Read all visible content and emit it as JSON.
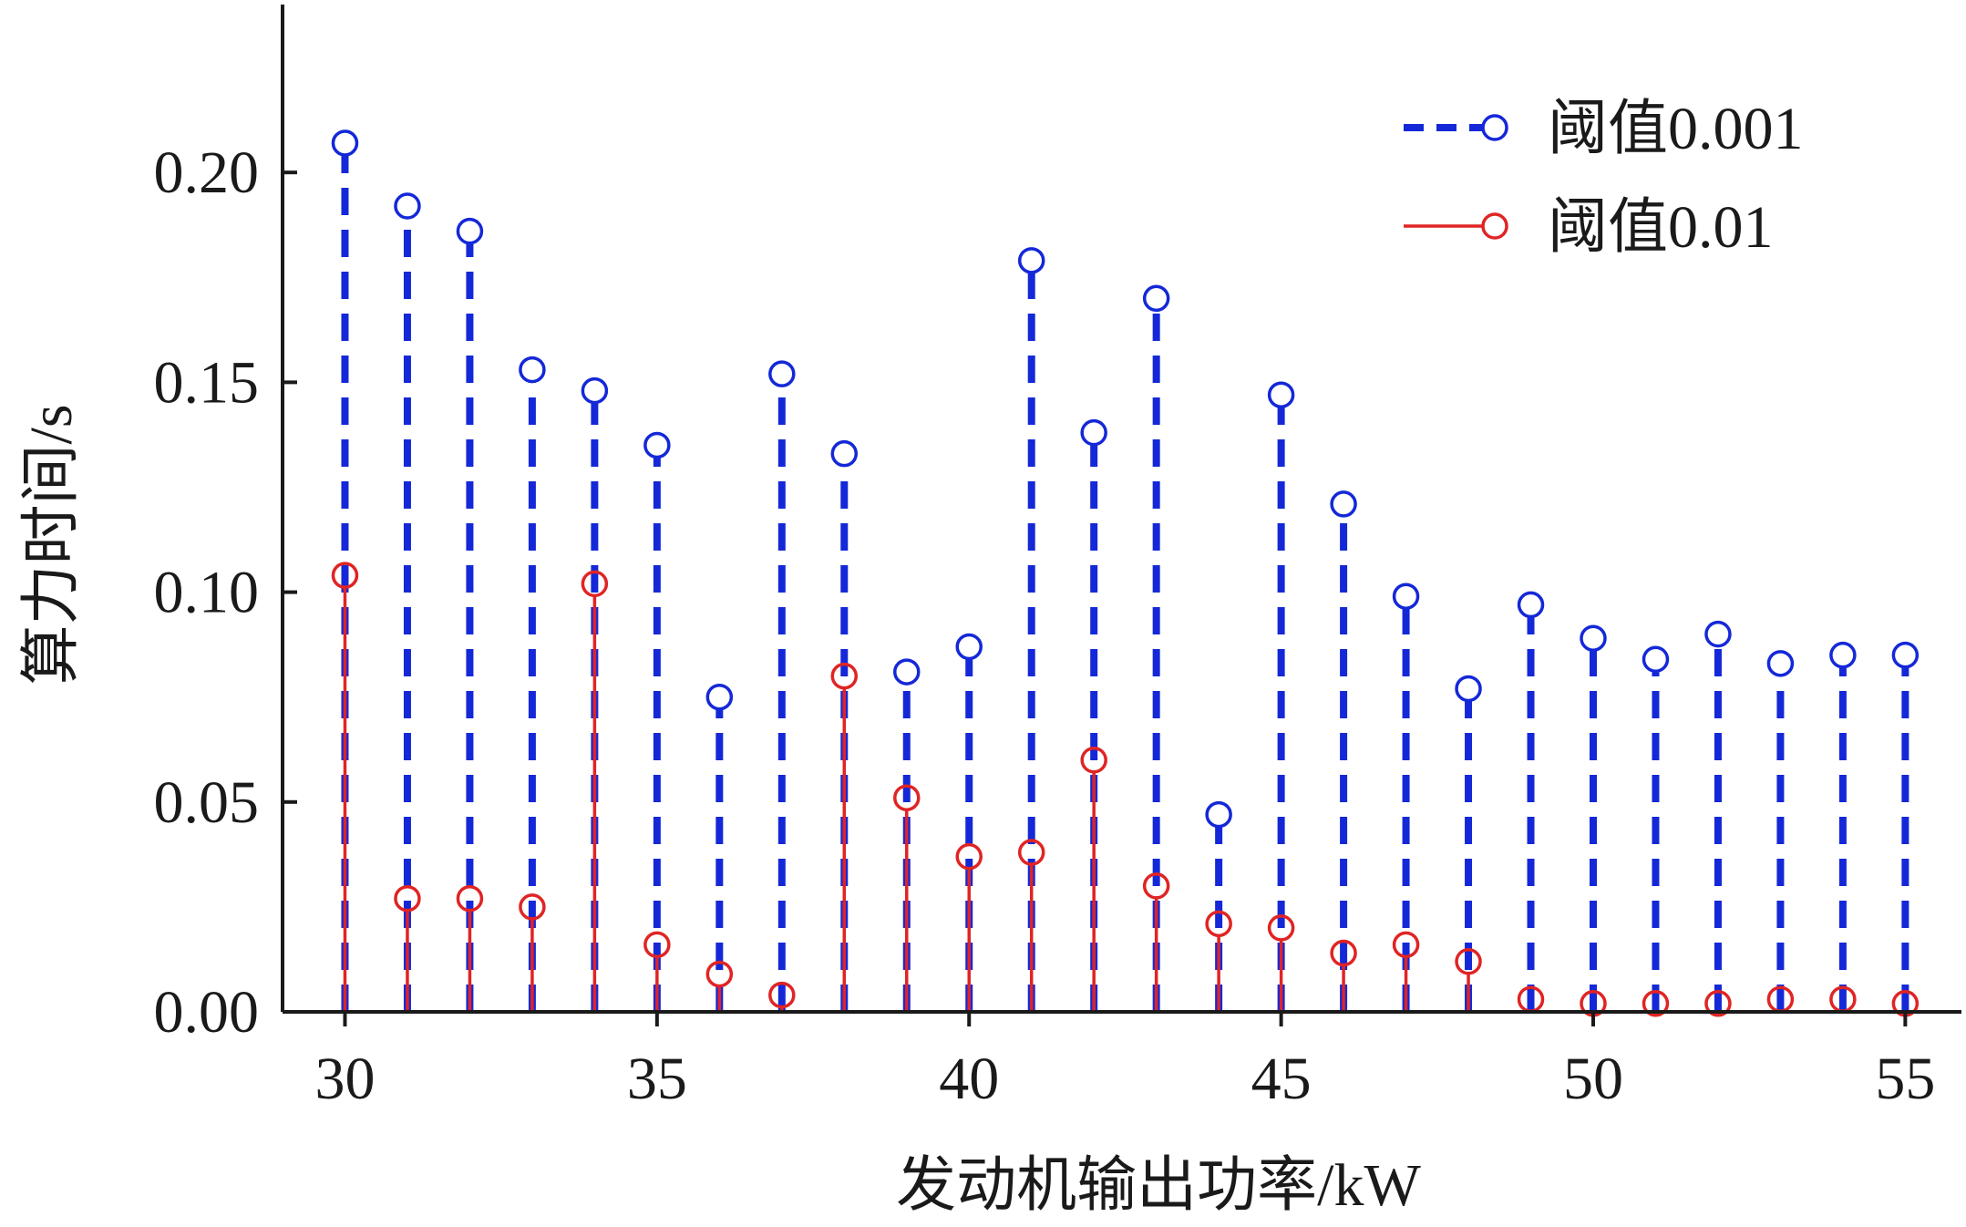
{
  "chart_data": {
    "type": "stem",
    "xlabel": "发动机输出功率/kW",
    "ylabel": "算力时间/s",
    "xlim": [
      29,
      55.9
    ],
    "ylim": [
      0,
      0.24
    ],
    "x_ticks": [
      30,
      35,
      40,
      45,
      50,
      55
    ],
    "y_ticks": [
      0.0,
      0.05,
      0.1,
      0.15,
      0.2
    ],
    "y_tick_labels": [
      "0.00",
      "0.05",
      "0.10",
      "0.15",
      "0.20"
    ],
    "x_tick_labels": [
      "30",
      "35",
      "40",
      "45",
      "50",
      "55"
    ],
    "grid": false,
    "legend_position": "top-right",
    "x": [
      30,
      31,
      32,
      33,
      34,
      35,
      36,
      37,
      38,
      39,
      40,
      41,
      42,
      43,
      44,
      45,
      46,
      47,
      48,
      49,
      50,
      51,
      52,
      53,
      54,
      55
    ],
    "series": [
      {
        "name": "阈值0.001",
        "color": "#1428d8",
        "line_style": "dashed",
        "marker": "open-circle",
        "values": [
          0.207,
          0.192,
          0.186,
          0.153,
          0.148,
          0.135,
          0.075,
          0.152,
          0.133,
          0.081,
          0.087,
          0.179,
          0.138,
          0.17,
          0.047,
          0.147,
          0.121,
          0.099,
          0.077,
          0.097,
          0.089,
          0.084,
          0.09,
          0.083,
          0.085,
          0.085
        ]
      },
      {
        "name": "阈值0.01",
        "color": "#e02424",
        "line_style": "solid",
        "marker": "open-circle",
        "values": [
          0.104,
          0.027,
          0.027,
          0.025,
          0.102,
          0.016,
          0.009,
          0.004,
          0.08,
          0.051,
          0.037,
          0.038,
          0.06,
          0.03,
          0.021,
          0.02,
          0.014,
          0.016,
          0.012,
          0.003,
          0.002,
          0.002,
          0.002,
          0.003,
          0.003,
          0.002
        ]
      }
    ]
  }
}
